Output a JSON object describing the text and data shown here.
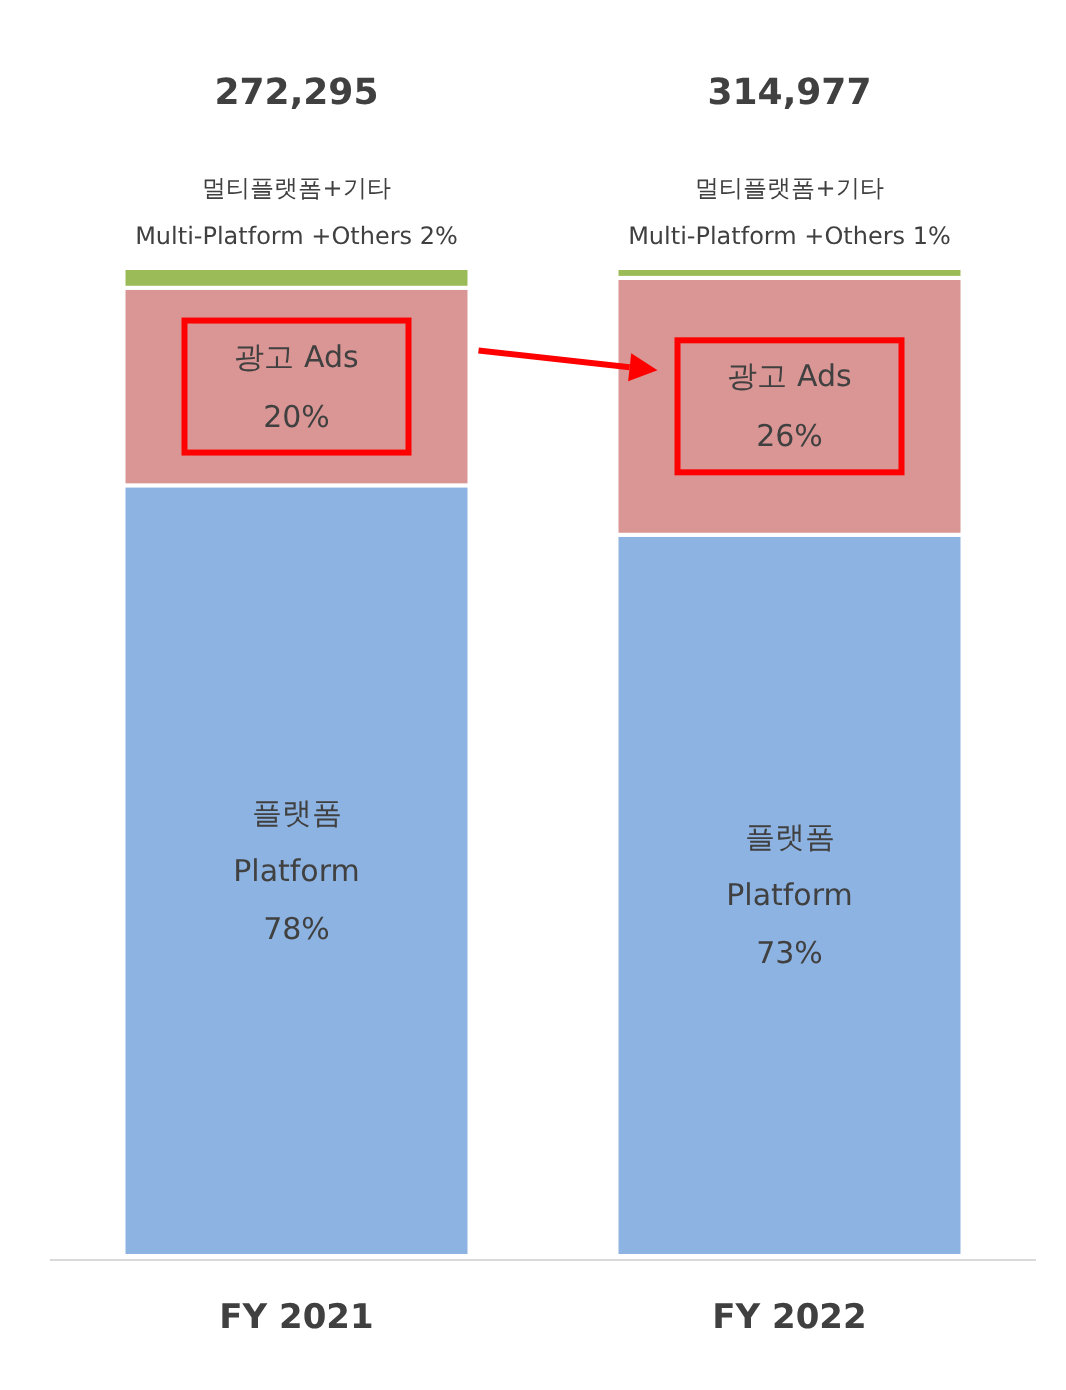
{
  "chart_data": {
    "type": "bar",
    "stacked": true,
    "categories": [
      "FY 2021",
      "FY 2022"
    ],
    "series": [
      {
        "name": "플랫폼\nPlatform",
        "color": "#8db3e2",
        "values": [
          78,
          73
        ],
        "value_labels": [
          "78%",
          "73%"
        ]
      },
      {
        "name": "광고 Ads",
        "color": "#d99694",
        "values": [
          20,
          26
        ],
        "value_labels": [
          "20%",
          "26%"
        ]
      },
      {
        "name": "멀티플랫폼+기타\nMulti-Platform +Others",
        "color": "#9bbb59",
        "values": [
          2,
          1
        ],
        "value_labels": [
          "2%",
          "1%"
        ]
      }
    ],
    "annotations": [
      "272,295",
      "314,977"
    ]
  }
}
